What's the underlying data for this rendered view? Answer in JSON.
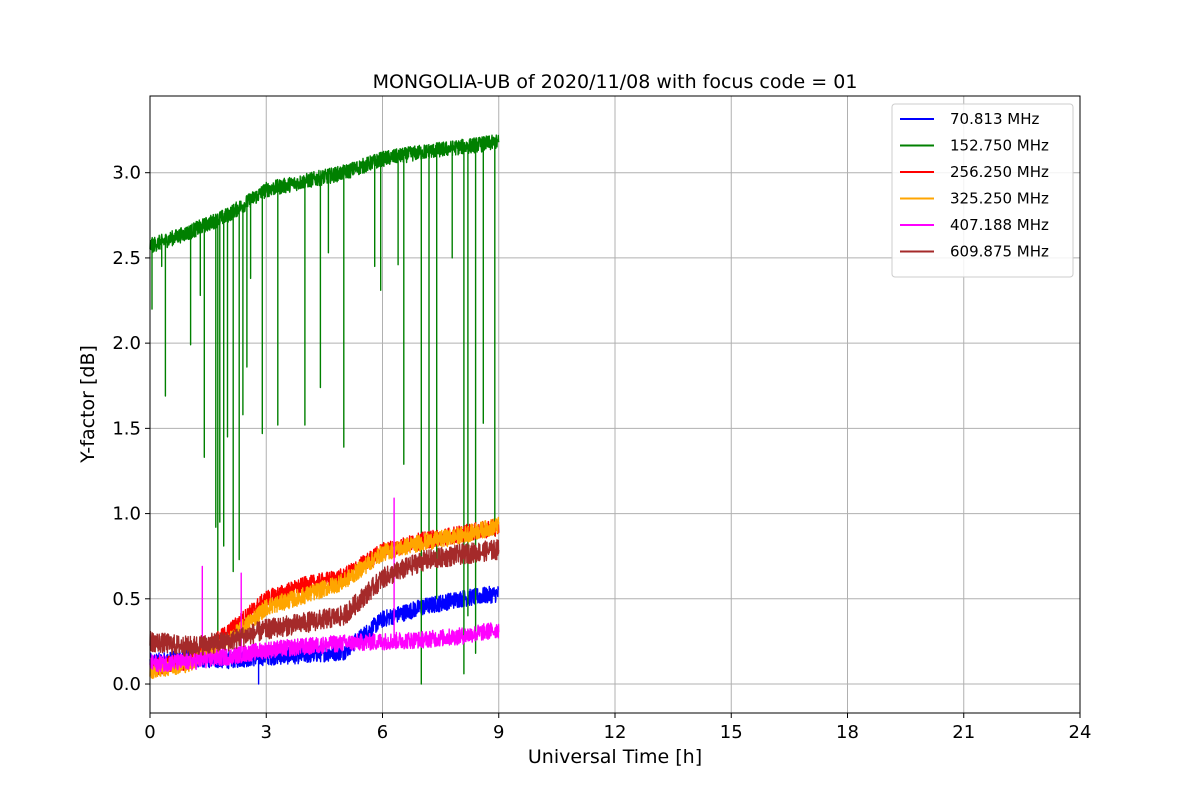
{
  "chart_data": {
    "type": "line",
    "title": "MONGOLIA-UB of 2020/11/08 with focus code = 01",
    "xlabel": "Universal Time [h]",
    "ylabel": "Y-factor [dB]",
    "xlim": [
      0,
      24
    ],
    "ylim": [
      -0.17,
      3.45
    ],
    "xticks": [
      0,
      3,
      6,
      9,
      12,
      15,
      18,
      21,
      24
    ],
    "xtick_labels": [
      "0",
      "3",
      "6",
      "9",
      "12",
      "15",
      "18",
      "21",
      "24"
    ],
    "yticks": [
      0.0,
      0.5,
      1.0,
      1.5,
      2.0,
      2.5,
      3.0
    ],
    "ytick_labels": [
      "0.0",
      "0.5",
      "1.0",
      "1.5",
      "2.0",
      "2.5",
      "3.0"
    ],
    "grid": true,
    "legend_position": "top-right",
    "series": [
      {
        "name": " 70.813 MHz",
        "color": "#0000ff",
        "x": [
          0,
          1,
          2,
          3,
          4,
          5,
          6,
          7,
          8,
          9
        ],
        "y": [
          0.13,
          0.15,
          0.14,
          0.16,
          0.17,
          0.19,
          0.38,
          0.45,
          0.5,
          0.53
        ],
        "noise": 0.05,
        "dips": [
          [
            2.8,
            0.0
          ]
        ],
        "spikes": []
      },
      {
        "name": "152.750 MHz",
        "color": "#008000",
        "x": [
          0,
          1,
          2,
          3,
          4,
          5,
          6,
          7,
          8,
          9
        ],
        "y": [
          2.57,
          2.65,
          2.75,
          2.9,
          2.95,
          3.0,
          3.08,
          3.12,
          3.15,
          3.18
        ],
        "noise": 0.045,
        "dips": [
          [
            0.05,
            2.2
          ],
          [
            0.3,
            2.45
          ],
          [
            0.4,
            1.69
          ],
          [
            1.05,
            1.99
          ],
          [
            1.3,
            2.28
          ],
          [
            1.4,
            1.33
          ],
          [
            1.7,
            0.92
          ],
          [
            1.75,
            0.19
          ],
          [
            1.8,
            0.95
          ],
          [
            1.9,
            0.81
          ],
          [
            2.0,
            1.45
          ],
          [
            2.15,
            0.66
          ],
          [
            2.3,
            0.73
          ],
          [
            2.4,
            1.58
          ],
          [
            2.5,
            1.86
          ],
          [
            2.6,
            2.38
          ],
          [
            2.9,
            1.47
          ],
          [
            3.3,
            1.52
          ],
          [
            4.0,
            1.52
          ],
          [
            4.4,
            1.74
          ],
          [
            4.6,
            2.53
          ],
          [
            5.0,
            1.39
          ],
          [
            5.8,
            2.45
          ],
          [
            5.95,
            2.31
          ],
          [
            6.4,
            2.46
          ],
          [
            6.55,
            1.29
          ],
          [
            7.0,
            0.0
          ],
          [
            7.2,
            0.84
          ],
          [
            7.4,
            0.5
          ],
          [
            7.8,
            2.5
          ],
          [
            8.1,
            0.06
          ],
          [
            8.2,
            0.4
          ],
          [
            8.4,
            0.18
          ],
          [
            8.6,
            1.53
          ],
          [
            8.9,
            0.87
          ]
        ],
        "spikes": []
      },
      {
        "name": "256.250 MHz",
        "color": "#ff0000",
        "x": [
          0,
          1,
          2,
          3,
          4,
          5,
          6,
          7,
          8,
          9
        ],
        "y": [
          0.1,
          0.13,
          0.3,
          0.5,
          0.58,
          0.63,
          0.78,
          0.84,
          0.88,
          0.92
        ],
        "noise": 0.05,
        "dips": [],
        "spikes": []
      },
      {
        "name": "325.250 MHz",
        "color": "#ffa500",
        "x": [
          0,
          1,
          2,
          3,
          4,
          5,
          6,
          7,
          8,
          9
        ],
        "y": [
          0.08,
          0.12,
          0.25,
          0.45,
          0.52,
          0.6,
          0.77,
          0.83,
          0.87,
          0.93
        ],
        "noise": 0.05,
        "dips": [],
        "spikes": []
      },
      {
        "name": "407.188 MHz",
        "color": "#ff00ff",
        "x": [
          0,
          1,
          2,
          3,
          4,
          5,
          6,
          7,
          8,
          9
        ],
        "y": [
          0.12,
          0.13,
          0.16,
          0.2,
          0.22,
          0.24,
          0.25,
          0.26,
          0.28,
          0.32
        ],
        "noise": 0.05,
        "dips": [],
        "spikes": [
          [
            1.35,
            0.69
          ],
          [
            2.35,
            0.65
          ],
          [
            6.3,
            1.09
          ]
        ]
      },
      {
        "name": "609.875 MHz",
        "color": "#a52a2a",
        "x": [
          0,
          1,
          2,
          3,
          4,
          5,
          6,
          7,
          8,
          9
        ],
        "y": [
          0.25,
          0.22,
          0.25,
          0.32,
          0.36,
          0.4,
          0.62,
          0.72,
          0.76,
          0.79
        ],
        "noise": 0.06,
        "dips": [],
        "spikes": []
      }
    ]
  }
}
